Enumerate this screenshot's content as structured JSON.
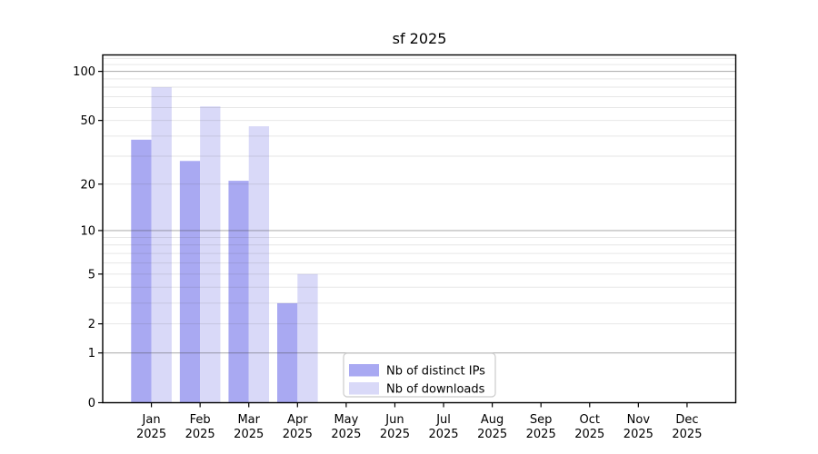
{
  "page": {
    "background": "#ffffff"
  },
  "chart_data": {
    "type": "bar",
    "title": "sf 2025",
    "categories": [
      "Jan 2025",
      "Feb 2025",
      "Mar 2025",
      "Apr 2025",
      "May 2025",
      "Jun 2025",
      "Jul 2025",
      "Aug 2025",
      "Sep 2025",
      "Oct 2025",
      "Nov 2025",
      "Dec 2025"
    ],
    "series": [
      {
        "name": "Nb of distinct IPs",
        "color": "#a9a9f2",
        "values": [
          38,
          28,
          21,
          3,
          0,
          0,
          0,
          0,
          0,
          0,
          0,
          0
        ]
      },
      {
        "name": "Nb of downloads",
        "color": "#d9d9f8",
        "values": [
          80,
          61,
          46,
          5,
          0,
          0,
          0,
          0,
          0,
          0,
          0,
          0
        ]
      }
    ],
    "y_axis": {
      "scale": "log1p",
      "tick_labels": [
        0,
        1,
        2,
        5,
        10,
        20,
        50,
        100
      ],
      "major_gridlines": [
        1,
        10,
        100
      ],
      "minor_gridlines": [
        2,
        3,
        4,
        5,
        6,
        7,
        8,
        9,
        20,
        30,
        40,
        50,
        60,
        70,
        80,
        90,
        110,
        120
      ],
      "ylim": [
        0,
        126
      ]
    },
    "xlabel": "",
    "ylabel": "",
    "grid": true,
    "grid_above_bars": true,
    "legend": {
      "position": "lower-center",
      "items": [
        "Nb of distinct IPs",
        "Nb of downloads"
      ]
    }
  },
  "colors": {
    "axis": "#000000",
    "text": "#000000",
    "grid_major": "rgba(64,64,64,0.40)",
    "grid_minor": "rgba(64,64,64,0.13)",
    "legend_border": "#cccccc",
    "legend_background": "#ffffff"
  }
}
